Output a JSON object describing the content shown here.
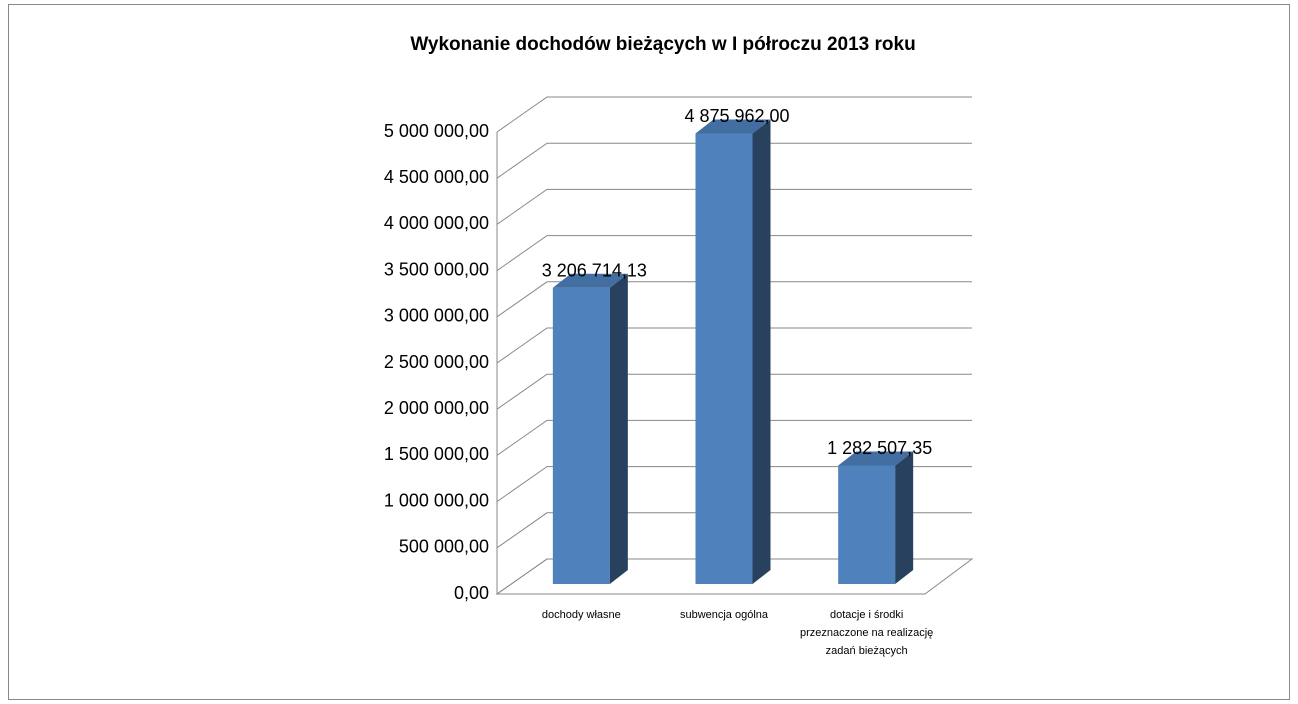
{
  "chart_data": {
    "type": "bar3d",
    "title": "Wykonanie dochodów bieżących w  I półroczu 2013 roku",
    "categories": [
      "dochody własne",
      "subwencja ogólna",
      "dotacje i środki przeznaczone na realizację zadań bieżących"
    ],
    "values": [
      3206714.13,
      4875962.0,
      1282507.35
    ],
    "value_labels": [
      "3 206 714,13",
      "4 875 962,00",
      "1 282 507,35"
    ],
    "color": "#4f81bd",
    "ylim": [
      0,
      5000000
    ],
    "yticks": [
      {
        "value": 0,
        "label": "0,00"
      },
      {
        "value": 500000,
        "label": "500 000,00"
      },
      {
        "value": 1000000,
        "label": "1 000 000,00"
      },
      {
        "value": 1500000,
        "label": "1 500 000,00"
      },
      {
        "value": 2000000,
        "label": "2 000 000,00"
      },
      {
        "value": 2500000,
        "label": "2 500 000,00"
      },
      {
        "value": 3000000,
        "label": "3 000 000,00"
      },
      {
        "value": 3500000,
        "label": "3 500 000,00"
      },
      {
        "value": 4000000,
        "label": "4 000 000,00"
      },
      {
        "value": 4500000,
        "label": "4 500 000,00"
      },
      {
        "value": 5000000,
        "label": "5 000 000,00"
      }
    ],
    "grid": true
  }
}
